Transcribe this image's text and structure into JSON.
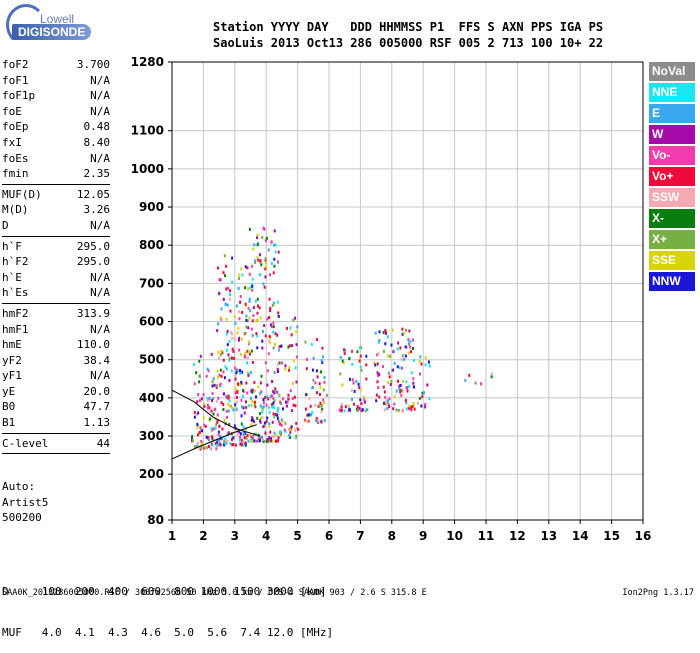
{
  "logo": {
    "top": "Lowell",
    "bottom": "DIGISONDE"
  },
  "header": {
    "line1": "Station YYYY DAY   DDD HHMMSS P1  FFS S AXN PPS IGA PS",
    "line2": "SaoLuis 2013 Oct13 286 005000 RSF 005 2 713 100 10+ 22"
  },
  "params": [
    {
      "name": "foF2",
      "value": "3.700"
    },
    {
      "name": "foF1",
      "value": "N/A"
    },
    {
      "name": "foF1p",
      "value": "N/A"
    },
    {
      "name": "foE",
      "value": "N/A"
    },
    {
      "name": "foEp",
      "value": "0.48"
    },
    {
      "name": "fxI",
      "value": "8.40"
    },
    {
      "name": "foEs",
      "value": "N/A"
    },
    {
      "name": "fmin",
      "value": "2.35"
    },
    {
      "sep": true
    },
    {
      "name": "MUF(D)",
      "value": "12.05"
    },
    {
      "name": "M(D)",
      "value": "3.26"
    },
    {
      "name": "D",
      "value": "N/A"
    },
    {
      "sep": true
    },
    {
      "name": "h`F",
      "value": "295.0"
    },
    {
      "name": "h`F2",
      "value": "295.0"
    },
    {
      "name": "h`E",
      "value": "N/A"
    },
    {
      "name": "h`Es",
      "value": "N/A"
    },
    {
      "sep": true
    },
    {
      "name": "hmF2",
      "value": "313.9"
    },
    {
      "name": "hmF1",
      "value": "N/A"
    },
    {
      "name": "hmE",
      "value": "110.0"
    },
    {
      "name": "yF2",
      "value": "38.4"
    },
    {
      "name": "yF1",
      "value": "N/A"
    },
    {
      "name": "yE",
      "value": "20.0"
    },
    {
      "name": "B0",
      "value": "47.7"
    },
    {
      "name": "B1",
      "value": "1.13"
    },
    {
      "sep": true
    },
    {
      "name": "C-level",
      "value": "44"
    },
    {
      "sep": true
    }
  ],
  "auto": {
    "line1": "Auto:",
    "line2": "Artist5",
    "line3": "500200"
  },
  "legend": [
    {
      "label": "NoVal",
      "color": "#8c8c8c"
    },
    {
      "label": "NNE",
      "color": "#19e6f0"
    },
    {
      "label": "E",
      "color": "#3aa8ec"
    },
    {
      "label": "W",
      "color": "#a60aa8"
    },
    {
      "label": "Vo-",
      "color": "#f23cae"
    },
    {
      "label": "Vo+",
      "color": "#ee0a3a"
    },
    {
      "label": "SSW",
      "color": "#f4aab0"
    },
    {
      "label": "X-",
      "color": "#0a7d0f"
    },
    {
      "label": "X+",
      "color": "#76b043"
    },
    {
      "label": "SSE",
      "color": "#d8d40c"
    },
    {
      "label": "NNW",
      "color": "#1a16d8"
    }
  ],
  "muf_table": {
    "line1": "D     100  200  400  600  800 1000 1500 3000 [km]",
    "line2": "MUF   4.0  4.1  4.3  4.6  5.0  5.6  7.4 12.0 [MHz]"
  },
  "footer": {
    "left": "SAA0K_2013286005000.RSF / 300fx256h 50 kHz 5.0 km / DPS-4 SAA0K 903 / 2.6 S 315.8 E",
    "right": "Ion2Png 1.3.17"
  },
  "chart_data": {
    "type": "scatter",
    "title": "",
    "xlabel": "",
    "ylabel": "",
    "xlim": [
      1,
      16
    ],
    "ylim": [
      80,
      1280
    ],
    "x_ticks": [
      "1",
      "2",
      "3",
      "4",
      "5",
      "6",
      "7",
      "8",
      "9",
      "10",
      "11",
      "12",
      "13",
      "14",
      "15",
      "16"
    ],
    "y_ticks": [
      "80",
      "200",
      "300",
      "400",
      "500",
      "600",
      "700",
      "800",
      "900",
      "1000",
      "1100",
      "1280"
    ],
    "grid": true,
    "clusters": [
      {
        "f_min": 1.6,
        "f_max": 2.4,
        "h_min": 270,
        "h_max": 520,
        "density": 0.9
      },
      {
        "f_min": 2.4,
        "f_max": 3.4,
        "h_min": 280,
        "h_max": 780,
        "density": 0.85
      },
      {
        "f_min": 3.4,
        "f_max": 4.4,
        "h_min": 290,
        "h_max": 860,
        "density": 0.8
      },
      {
        "f_min": 4.4,
        "f_max": 5.0,
        "h_min": 300,
        "h_max": 620,
        "density": 0.6
      },
      {
        "f_min": 5.2,
        "f_max": 5.9,
        "h_min": 340,
        "h_max": 560,
        "density": 0.7
      },
      {
        "f_min": 6.3,
        "f_max": 7.2,
        "h_min": 370,
        "h_max": 540,
        "density": 0.75
      },
      {
        "f_min": 7.4,
        "f_max": 8.7,
        "h_min": 370,
        "h_max": 590,
        "density": 0.75
      },
      {
        "f_min": 8.8,
        "f_max": 9.2,
        "h_min": 380,
        "h_max": 520,
        "density": 0.6
      },
      {
        "f_min": 10.0,
        "f_max": 11.2,
        "h_min": 440,
        "h_max": 470,
        "density": 0.3
      }
    ],
    "curves": [
      {
        "name": "",
        "points": [
          [
            1.0,
            240
          ],
          [
            1.8,
            270
          ],
          [
            2.4,
            290
          ],
          [
            3.0,
            310
          ],
          [
            3.7,
            330
          ]
        ]
      },
      {
        "name": "",
        "points": [
          [
            1.0,
            420
          ],
          [
            1.7,
            390
          ],
          [
            2.3,
            350
          ],
          [
            3.0,
            320
          ],
          [
            3.8,
            300
          ]
        ]
      }
    ]
  }
}
